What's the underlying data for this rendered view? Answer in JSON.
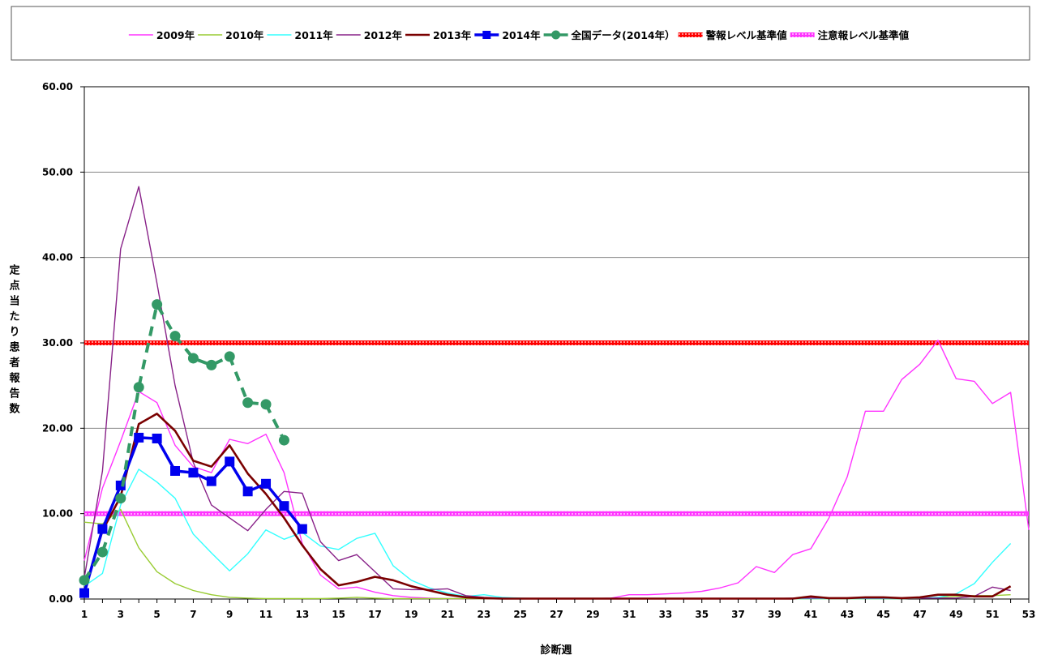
{
  "chart_data": {
    "type": "line",
    "xlabel": "診断週",
    "ylabel": "定点当たり患者報告数",
    "xlim": [
      1,
      53
    ],
    "ylim": [
      0,
      60
    ],
    "y_ticks": [
      "0.00",
      "10.00",
      "20.00",
      "30.00",
      "40.00",
      "50.00",
      "60.00"
    ],
    "x_ticks": [
      "1",
      "3",
      "5",
      "7",
      "9",
      "11",
      "13",
      "15",
      "17",
      "19",
      "21",
      "23",
      "25",
      "27",
      "29",
      "31",
      "33",
      "35",
      "37",
      "39",
      "41",
      "43",
      "45",
      "47",
      "49",
      "51",
      "53"
    ],
    "grid": "horizontal",
    "legend_position": "top",
    "series": [
      {
        "name": "2009年",
        "color": "#ff33ff",
        "style": "thin",
        "x": [
          1,
          2,
          3,
          4,
          5,
          6,
          7,
          8,
          9,
          10,
          11,
          12,
          13,
          14,
          15,
          16,
          17,
          18,
          19,
          20,
          21,
          22,
          23,
          24,
          25,
          26,
          27,
          28,
          29,
          30,
          31,
          32,
          33,
          34,
          35,
          36,
          37,
          38,
          39,
          40,
          41,
          42,
          43,
          44,
          45,
          46,
          47,
          48,
          49,
          50,
          51,
          52,
          53
        ],
        "values": [
          4.5,
          13.0,
          18.5,
          24.3,
          23.0,
          18.0,
          15.5,
          14.8,
          18.7,
          18.2,
          19.3,
          14.8,
          6.5,
          2.8,
          1.2,
          1.4,
          0.8,
          0.4,
          0.2,
          0.1,
          0.05,
          0.05,
          0.05,
          0.03,
          0.03,
          0.03,
          0.02,
          0.02,
          0.05,
          0.1,
          0.5,
          0.5,
          0.6,
          0.7,
          0.9,
          1.3,
          1.9,
          3.8,
          3.1,
          5.2,
          5.9,
          9.5,
          14.3,
          22.0,
          22.0,
          25.7,
          27.5,
          30.3,
          25.8,
          25.5,
          22.9,
          24.2,
          8.1
        ]
      },
      {
        "name": "2010年",
        "color": "#99cc33",
        "style": "thin",
        "x": [
          1,
          2,
          3,
          4,
          5,
          6,
          7,
          8,
          9,
          10,
          11,
          12,
          13,
          14,
          15,
          16,
          17,
          18,
          19,
          20,
          21,
          22,
          23,
          24,
          25,
          26,
          27,
          28,
          29,
          30,
          31,
          32,
          33,
          34,
          35,
          36,
          37,
          38,
          39,
          40,
          41,
          42,
          43,
          44,
          45,
          46,
          47,
          48,
          49,
          50,
          51,
          52
        ],
        "values": [
          9.0,
          8.8,
          10.5,
          6.0,
          3.2,
          1.8,
          1.0,
          0.5,
          0.2,
          0.1,
          0.05,
          0.05,
          0.05,
          0.05,
          0.1,
          0.2,
          0.1,
          0.05,
          0.05,
          0.05,
          0.05,
          0.05,
          0.03,
          0.03,
          0.03,
          0.03,
          0.03,
          0.02,
          0.02,
          0.02,
          0.02,
          0.02,
          0.02,
          0.02,
          0.02,
          0.02,
          0.02,
          0.02,
          0.02,
          0.02,
          0.02,
          0.02,
          0.02,
          0.02,
          0.02,
          0.05,
          0.1,
          0.2,
          0.3,
          0.4,
          0.4,
          0.5
        ]
      },
      {
        "name": "2011年",
        "color": "#33ffff",
        "style": "thin",
        "x": [
          1,
          2,
          3,
          4,
          5,
          6,
          7,
          8,
          9,
          10,
          11,
          12,
          13,
          14,
          15,
          16,
          17,
          18,
          19,
          20,
          21,
          22,
          23,
          24,
          25,
          26,
          27,
          28,
          29,
          30,
          31,
          32,
          33,
          34,
          35,
          36,
          37,
          38,
          39,
          40,
          41,
          42,
          43,
          44,
          45,
          46,
          47,
          48,
          49,
          50,
          51,
          52
        ],
        "values": [
          1.5,
          3.0,
          11.0,
          15.2,
          13.7,
          11.8,
          7.6,
          5.4,
          3.3,
          5.3,
          8.1,
          7.0,
          7.8,
          6.2,
          5.8,
          7.1,
          7.7,
          3.9,
          2.2,
          1.3,
          0.7,
          0.3,
          0.5,
          0.2,
          0.1,
          0.05,
          0.05,
          0.05,
          0.05,
          0.05,
          0.05,
          0.05,
          0.05,
          0.05,
          0.05,
          0.05,
          0.05,
          0.05,
          0.05,
          0.05,
          0.05,
          0.05,
          0.05,
          0.05,
          0.05,
          0.05,
          0.1,
          0.2,
          0.6,
          1.8,
          4.3,
          6.5
        ]
      },
      {
        "name": "2012年",
        "color": "#882288",
        "style": "thin",
        "x": [
          1,
          2,
          3,
          4,
          5,
          6,
          7,
          8,
          9,
          10,
          11,
          12,
          13,
          14,
          15,
          16,
          17,
          18,
          19,
          20,
          21,
          22,
          23,
          24,
          25,
          26,
          27,
          28,
          29,
          30,
          31,
          32,
          33,
          34,
          35,
          36,
          37,
          38,
          39,
          40,
          41,
          42,
          43,
          44,
          45,
          46,
          47,
          48,
          49,
          50,
          51,
          52
        ],
        "values": [
          2.5,
          15.0,
          41.0,
          48.3,
          37.0,
          25.0,
          16.0,
          11.0,
          9.5,
          8.0,
          10.5,
          12.6,
          12.4,
          6.7,
          4.5,
          5.2,
          3.2,
          1.2,
          1.1,
          1.1,
          1.2,
          0.4,
          0.2,
          0.1,
          0.05,
          0.05,
          0.05,
          0.05,
          0.05,
          0.05,
          0.05,
          0.05,
          0.05,
          0.05,
          0.05,
          0.05,
          0.05,
          0.05,
          0.05,
          0.1,
          0.1,
          0.1,
          0.1,
          0.1,
          0.1,
          0.1,
          0.1,
          0.1,
          0.1,
          0.3,
          1.4,
          1.0
        ]
      },
      {
        "name": "2013年",
        "color": "#7a0000",
        "style": "thick",
        "x": [
          1,
          2,
          3,
          4,
          5,
          6,
          7,
          8,
          9,
          10,
          11,
          12,
          13,
          14,
          15,
          16,
          17,
          18,
          19,
          20,
          21,
          22,
          23,
          24,
          25,
          26,
          27,
          28,
          29,
          30,
          31,
          32,
          33,
          34,
          35,
          36,
          37,
          38,
          39,
          40,
          41,
          42,
          43,
          44,
          45,
          46,
          47,
          48,
          49,
          50,
          51,
          52
        ],
        "values": [
          0.8,
          8.0,
          12.0,
          20.5,
          21.7,
          19.7,
          16.2,
          15.5,
          18.0,
          14.7,
          12.3,
          9.5,
          6.3,
          3.5,
          1.6,
          2.0,
          2.6,
          2.2,
          1.5,
          1.0,
          0.5,
          0.2,
          0.1,
          0.05,
          0.05,
          0.05,
          0.05,
          0.05,
          0.05,
          0.05,
          0.05,
          0.05,
          0.05,
          0.05,
          0.05,
          0.05,
          0.05,
          0.05,
          0.05,
          0.05,
          0.3,
          0.1,
          0.1,
          0.2,
          0.2,
          0.1,
          0.2,
          0.5,
          0.5,
          0.3,
          0.3,
          1.5
        ]
      },
      {
        "name": "2014年",
        "color": "#0000ee",
        "style": "marker-square",
        "x": [
          1,
          2,
          3,
          4,
          5,
          6,
          7,
          8,
          9,
          10,
          11,
          12,
          13
        ],
        "values": [
          0.7,
          8.2,
          13.3,
          18.9,
          18.8,
          15.0,
          14.8,
          13.8,
          16.1,
          12.6,
          13.5,
          10.9,
          8.2
        ]
      },
      {
        "name": "全国データ(2014年）",
        "color": "#339966",
        "style": "dashed-circle",
        "x": [
          1,
          2,
          3,
          4,
          5,
          6,
          7,
          8,
          9,
          10,
          11,
          12
        ],
        "values": [
          2.2,
          5.5,
          11.8,
          24.8,
          34.5,
          30.8,
          28.2,
          27.4,
          28.4,
          23.0,
          22.8,
          18.6
        ]
      }
    ],
    "reference_lines": [
      {
        "name": "警報レベル基準値",
        "value": 30,
        "color": "#ff0000"
      },
      {
        "name": "注意報レベル基準値",
        "value": 10,
        "color": "#ff33ff"
      }
    ]
  }
}
